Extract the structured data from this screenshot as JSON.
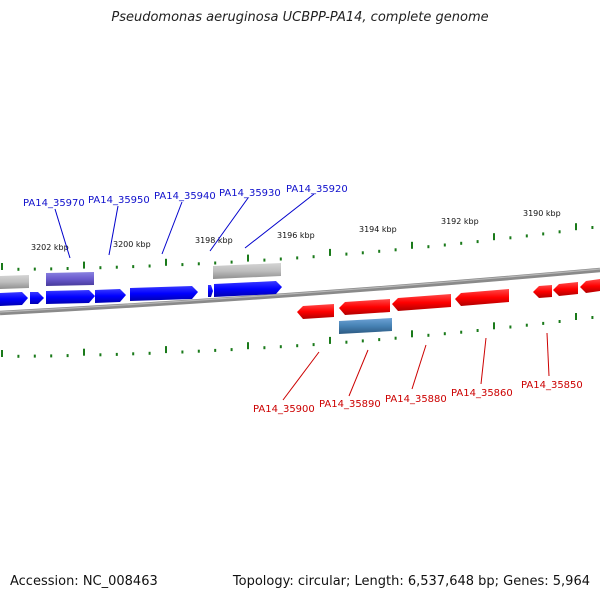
{
  "title": "Pseudomonas aeruginosa UCBPP-PA14, complete genome",
  "footer": {
    "accession": "Accession: NC_008463",
    "summary": "Topology: circular; Length: 6,537,648 bp; Genes: 5,964"
  },
  "colors": {
    "forward_gene": "#0000ff",
    "reverse_gene": "#ff0000",
    "forward_label": "#1010cc",
    "reverse_label": "#cc0000",
    "tick": "#1a7a1a",
    "backbone": "#777777"
  },
  "scale_labels": [
    "3202 kbp",
    "3200 kbp",
    "3198 kbp",
    "3196 kbp",
    "3194 kbp",
    "3192 kbp",
    "3190 kbp"
  ],
  "forward_labels": [
    "PA14_35970",
    "PA14_35950",
    "PA14_35940",
    "PA14_35930",
    "PA14_35920"
  ],
  "reverse_labels": [
    "PA14_35900",
    "PA14_35890",
    "PA14_35880",
    "PA14_35860",
    "PA14_35850"
  ]
}
